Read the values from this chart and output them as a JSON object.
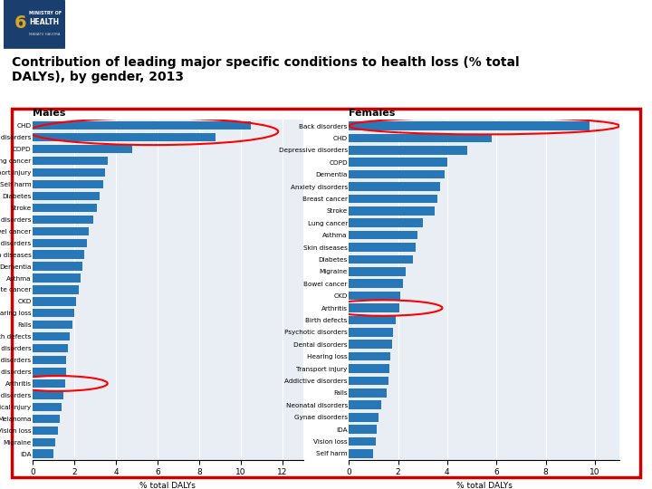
{
  "title": "Contribution of leading major specific conditions to health loss (% total\nDALYs), by gender, 2013",
  "males_labels": [
    "CHD",
    "Back disorders",
    "COPD",
    "Lung cancer",
    "Transport injury",
    "Self harm",
    "Diabetes",
    "Stroke",
    "Addictive disorders",
    "Bowel cancer",
    "Depressive disorders",
    "Skin diseases",
    "Dementia",
    "Asthma",
    "Prostate cancer",
    "CKD",
    "Hearing loss",
    "Falls",
    "Birth defects",
    "Psychotic disorders",
    "Anxiety disorders",
    "Dental disorders",
    "Arthritis",
    "Neonatal disorders",
    "Mechanical injury",
    "Melanoma",
    "Vision loss",
    "Migraine",
    "IDA"
  ],
  "males_values": [
    10.5,
    8.8,
    4.8,
    3.6,
    3.5,
    3.4,
    3.2,
    3.1,
    2.9,
    2.7,
    2.6,
    2.5,
    2.4,
    2.3,
    2.2,
    2.1,
    2.0,
    1.9,
    1.8,
    1.7,
    1.6,
    1.6,
    1.55,
    1.5,
    1.4,
    1.3,
    1.2,
    1.1,
    1.0
  ],
  "females_labels": [
    "Back disorders",
    "CHD",
    "Depressive disorders",
    "COPD",
    "Dementia",
    "Anxiety disorders",
    "Breast cancer",
    "Stroke",
    "Lung cancer",
    "Asthma",
    "Skin diseases",
    "Diabetes",
    "Migraine",
    "Bowel cancer",
    "CKD",
    "Arthritis",
    "Birth defects",
    "Psychotic disorders",
    "Dental disorders",
    "Hearing loss",
    "Transport injury",
    "Addictive disorders",
    "Falls",
    "Neonatal disorders",
    "Gynae disorders",
    "IDA",
    "Vision loss",
    "Self harm"
  ],
  "females_values": [
    9.8,
    5.8,
    4.8,
    4.0,
    3.9,
    3.7,
    3.6,
    3.5,
    3.0,
    2.8,
    2.7,
    2.6,
    2.3,
    2.2,
    2.1,
    2.05,
    1.9,
    1.8,
    1.75,
    1.7,
    1.65,
    1.6,
    1.55,
    1.3,
    1.2,
    1.15,
    1.1,
    1.0
  ],
  "bar_color": "#2878b8",
  "header_bg": "#A8D4E6",
  "border_color": "#CC0000",
  "xlabel": "% total DALYs",
  "males_xlim": [
    0,
    13
  ],
  "females_xlim": [
    0,
    11
  ],
  "chart_bg": "#E8EEF4",
  "white": "#FFFFFF"
}
